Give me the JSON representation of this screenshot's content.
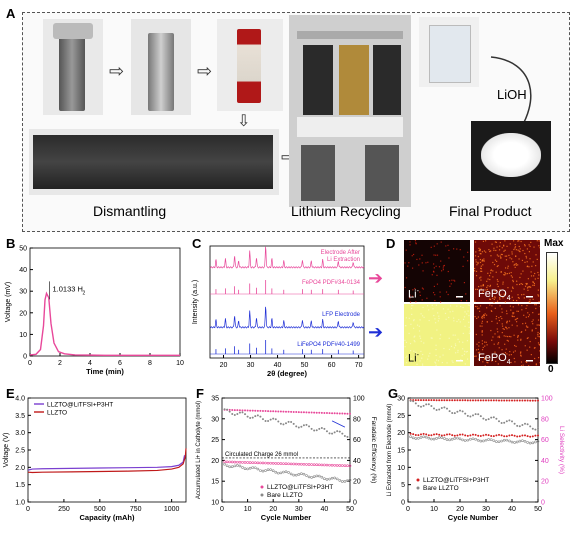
{
  "panels": {
    "a": {
      "label": "A",
      "captions": [
        "Dismantling",
        "Lithium Recycling",
        "Final Product"
      ],
      "reagent": "LiOH"
    },
    "b": {
      "label": "B",
      "peak_label": "1.0133",
      "peak_species": "H",
      "peak_sub": "2"
    },
    "c": {
      "label": "C",
      "traces": [
        {
          "text": "Electrode After",
          "text2": "Li Extraction",
          "color": "#e8489a"
        },
        {
          "text": "FePO",
          "sub": "4",
          "text2": "PDF#34-0134",
          "color": "#e8489a"
        },
        {
          "text": "LFP Electrode",
          "color": "#1f2fd6"
        },
        {
          "text": "LiFePO",
          "sub": "4",
          "text2": "PDF#40-1499",
          "color": "#1f2fd6"
        }
      ]
    },
    "d": {
      "label": "D",
      "maps": [
        {
          "text": "Li",
          "sup": "-"
        },
        {
          "text": "FePO",
          "sub": "4"
        },
        {
          "text": "Li",
          "sup": "-"
        },
        {
          "text": "FePO",
          "sub": "4"
        }
      ],
      "scale_max": "Max",
      "scale_min": "0"
    },
    "e": {
      "label": "E"
    },
    "f": {
      "label": "F",
      "annotation": "Circulated Charge 26 mmol"
    },
    "g": {
      "label": "G"
    }
  },
  "colors": {
    "pink": "#e8489a",
    "blue": "#1f2fd6",
    "red": "#d42020",
    "grey": "#888888",
    "purple": "#7a3fd0",
    "darkred": "#c01a1a"
  },
  "chart_data": [
    {
      "panel": "B",
      "type": "line",
      "xlabel": "Time (min)",
      "ylabel": "Voltage (mV)",
      "xlim": [
        0,
        10
      ],
      "ylim": [
        0,
        50
      ],
      "xticks": [
        0,
        2,
        4,
        6,
        8,
        10
      ],
      "yticks": [
        0,
        10,
        20,
        30,
        40,
        50
      ],
      "series": [
        {
          "x": [
            0,
            0.4,
            0.7,
            0.9,
            1.0,
            1.1,
            1.25,
            1.4,
            1.6,
            1.9,
            2.3,
            3,
            4,
            5,
            6,
            8,
            10
          ],
          "y": [
            0.5,
            0.8,
            3,
            14,
            26,
            29,
            27,
            15,
            6,
            2,
            1,
            0.5,
            0.4,
            0.3,
            0.3,
            0.3,
            0.3
          ]
        }
      ]
    },
    {
      "panel": "C",
      "type": "line",
      "xlabel": "2θ (degree)",
      "ylabel": "Intensity (a.u.)",
      "xlim": [
        15,
        72
      ],
      "xticks": [
        20,
        30,
        40,
        50,
        60,
        70
      ]
    },
    {
      "panel": "E",
      "type": "line",
      "xlabel": "Capacity (mAh)",
      "ylabel": "Voltage (V)",
      "xlim": [
        0,
        1100
      ],
      "ylim": [
        1.0,
        4.0
      ],
      "xticks": [
        0,
        250,
        500,
        750,
        1000
      ],
      "xtick_labels": [
        "0",
        "250",
        "500",
        "750",
        "1000"
      ],
      "yticks": [
        1.0,
        1.5,
        2.0,
        2.5,
        3.0,
        3.5,
        4.0
      ],
      "series": [
        {
          "name": "LLZTO@LiTFSI+P3HT",
          "color": "#7a3fd0",
          "x": [
            0,
            30,
            100,
            300,
            500,
            700,
            900,
            1000,
            1050,
            1080,
            1090
          ],
          "y": [
            1.92,
            1.95,
            1.96,
            1.97,
            1.98,
            1.99,
            2.0,
            2.02,
            2.06,
            2.15,
            2.35
          ]
        },
        {
          "name": "LLZTO",
          "color": "#c01a1a",
          "x": [
            0,
            30,
            100,
            300,
            500,
            700,
            900,
            1000,
            1050,
            1080,
            1095,
            1100
          ],
          "y": [
            1.86,
            1.85,
            1.86,
            1.87,
            1.88,
            1.89,
            1.91,
            1.95,
            2.0,
            2.1,
            2.3,
            2.55
          ]
        }
      ]
    },
    {
      "panel": "F",
      "type": "scatter",
      "xlabel": "Cycle Number",
      "ylabel": "Accumulated Li+ in Catholyte (mmol)",
      "y2label": "Faradaic Efficiency (%)",
      "xlim": [
        0,
        50
      ],
      "ylim": [
        10,
        35
      ],
      "y2lim": [
        0,
        100
      ],
      "xticks": [
        0,
        10,
        20,
        30,
        40,
        50
      ],
      "yticks": [
        10,
        15,
        20,
        25,
        30,
        35
      ],
      "y2ticks": [
        0,
        20,
        40,
        60,
        80,
        100
      ],
      "series": [
        {
          "name": "LLZTO@LiTFSI+P3HT",
          "axis": "left",
          "color": "#e8489a"
        },
        {
          "name": "Bare LLZTO",
          "axis": "left",
          "color": "#888888"
        }
      ]
    },
    {
      "panel": "G",
      "type": "scatter",
      "xlabel": "Cycle Number",
      "ylabel": "Li Extracted from Electrode (mmol)",
      "y2label": "Li Selectivity (%)",
      "xlim": [
        0,
        50
      ],
      "ylim": [
        0,
        30
      ],
      "y2lim": [
        0,
        100
      ],
      "xticks": [
        0,
        10,
        20,
        30,
        40,
        50
      ],
      "yticks": [
        0,
        5,
        10,
        15,
        20,
        25,
        30
      ],
      "y2ticks": [
        0,
        20,
        40,
        60,
        80,
        100
      ],
      "series": [
        {
          "name": "LLZTO@LiTFSI+P3HT",
          "color": "#d42020"
        },
        {
          "name": "Bare LLZTO",
          "color": "#888888"
        }
      ]
    }
  ]
}
